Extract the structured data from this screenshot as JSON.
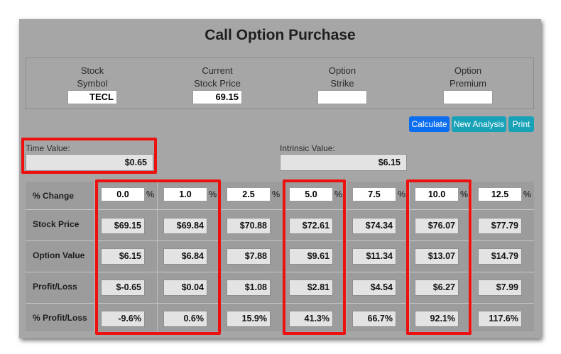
{
  "title": "Call Option Purchase",
  "inputs": {
    "stock_symbol": {
      "label_line1": "Stock",
      "label_line2": "Symbol",
      "value": "TECL"
    },
    "current_price": {
      "label_line1": "Current",
      "label_line2": "Stock Price",
      "value": "69.15"
    },
    "option_strike": {
      "label_line1": "Option",
      "label_line2": "Strike",
      "value": ""
    },
    "option_premium": {
      "label_line1": "Option",
      "label_line2": "Premium",
      "value": ""
    }
  },
  "buttons": {
    "calculate": "Calculate",
    "new_analysis": "New Analysis",
    "print": "Print"
  },
  "time_value": {
    "label": "Time Value:",
    "value": "$0.65"
  },
  "intrinsic_value": {
    "label": "Intrinsic Value:",
    "value": "$6.15"
  },
  "table": {
    "row_labels": {
      "pct_change": "% Change",
      "stock_price": "Stock Price",
      "option_value": "Option Value",
      "profit_loss": "Profit/Loss",
      "pct_profit_loss": "% Profit/Loss"
    },
    "pct_sign": "%",
    "columns": [
      {
        "pct_change": "0.0",
        "stock_price": "$69.15",
        "option_value": "$6.15",
        "profit_loss": "$-0.65",
        "pct_profit_loss": "-9.6%"
      },
      {
        "pct_change": "1.0",
        "stock_price": "$69.84",
        "option_value": "$6.84",
        "profit_loss": "$0.04",
        "pct_profit_loss": "0.6%"
      },
      {
        "pct_change": "2.5",
        "stock_price": "$70.88",
        "option_value": "$7.88",
        "profit_loss": "$1.08",
        "pct_profit_loss": "15.9%"
      },
      {
        "pct_change": "5.0",
        "stock_price": "$72.61",
        "option_value": "$9.61",
        "profit_loss": "$2.81",
        "pct_profit_loss": "41.3%"
      },
      {
        "pct_change": "7.5",
        "stock_price": "$74.34",
        "option_value": "$11.34",
        "profit_loss": "$4.54",
        "pct_profit_loss": "66.7%"
      },
      {
        "pct_change": "10.0",
        "stock_price": "$76.07",
        "option_value": "$13.07",
        "profit_loss": "$6.27",
        "pct_profit_loss": "92.1%"
      },
      {
        "pct_change": "12.5",
        "stock_price": "$77.79",
        "option_value": "$14.79",
        "profit_loss": "$7.99",
        "pct_profit_loss": "117.6%"
      }
    ]
  },
  "colors": {
    "highlight": "#ee0f0f",
    "panel": "#a6a6a6",
    "button_blue": "#0b6ef0",
    "button_teal": "#17a2b8"
  }
}
